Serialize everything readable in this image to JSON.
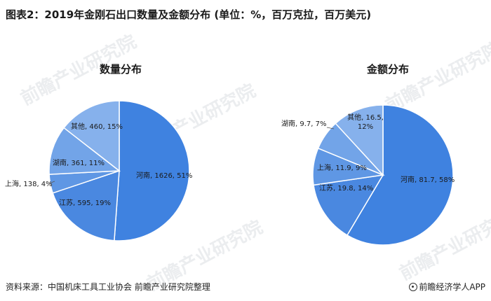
{
  "title": "图表2：2019年金刚石出口数量及金额分布 (单位：%，百万克拉，百万美元)",
  "footer": {
    "source": "资料来源：中国机床工具工业协会 前瞻产业研究院整理",
    "brand": "前瞻经济学人APP"
  },
  "watermark": "前瞻产业研究院",
  "colors": {
    "河南": "#3f82e0",
    "江苏": "#4a88e0",
    "上海": "#5f97e4",
    "湖南": "#72a4e8",
    "其他": "#86b1ec",
    "outline": "#ffffff",
    "leader": "#555555"
  },
  "chart_data": [
    {
      "type": "pie",
      "title": "数量分布",
      "slices": [
        {
          "name": "河南",
          "value": 1626,
          "percent": 51,
          "label": "河南, 1626, 51%"
        },
        {
          "name": "江苏",
          "value": 595,
          "percent": 19,
          "label": "江苏, 595, 19%"
        },
        {
          "name": "上海",
          "value": 138,
          "percent": 4,
          "label": "上海, 138, 4%"
        },
        {
          "name": "湖南",
          "value": 361,
          "percent": 11,
          "label": "湖南, 361, 11%"
        },
        {
          "name": "其他",
          "value": 460,
          "percent": 15,
          "label": "其他, 460, 15%"
        }
      ]
    },
    {
      "type": "pie",
      "title": "金额分布",
      "slices": [
        {
          "name": "河南",
          "value": 81.7,
          "percent": 58,
          "label": "河南, 81.7, 58%"
        },
        {
          "name": "江苏",
          "value": 19.8,
          "percent": 14,
          "label": "江苏, 19.8, 14%"
        },
        {
          "name": "上海",
          "value": 11.9,
          "percent": 9,
          "label": "上海, 11.9, 9%"
        },
        {
          "name": "湖南",
          "value": 9.7,
          "percent": 7,
          "label": "湖南, 9.7, 7%"
        },
        {
          "name": "其他",
          "value": 16.5,
          "percent": 12,
          "label": "其他, 16.5, 12%"
        }
      ]
    }
  ]
}
